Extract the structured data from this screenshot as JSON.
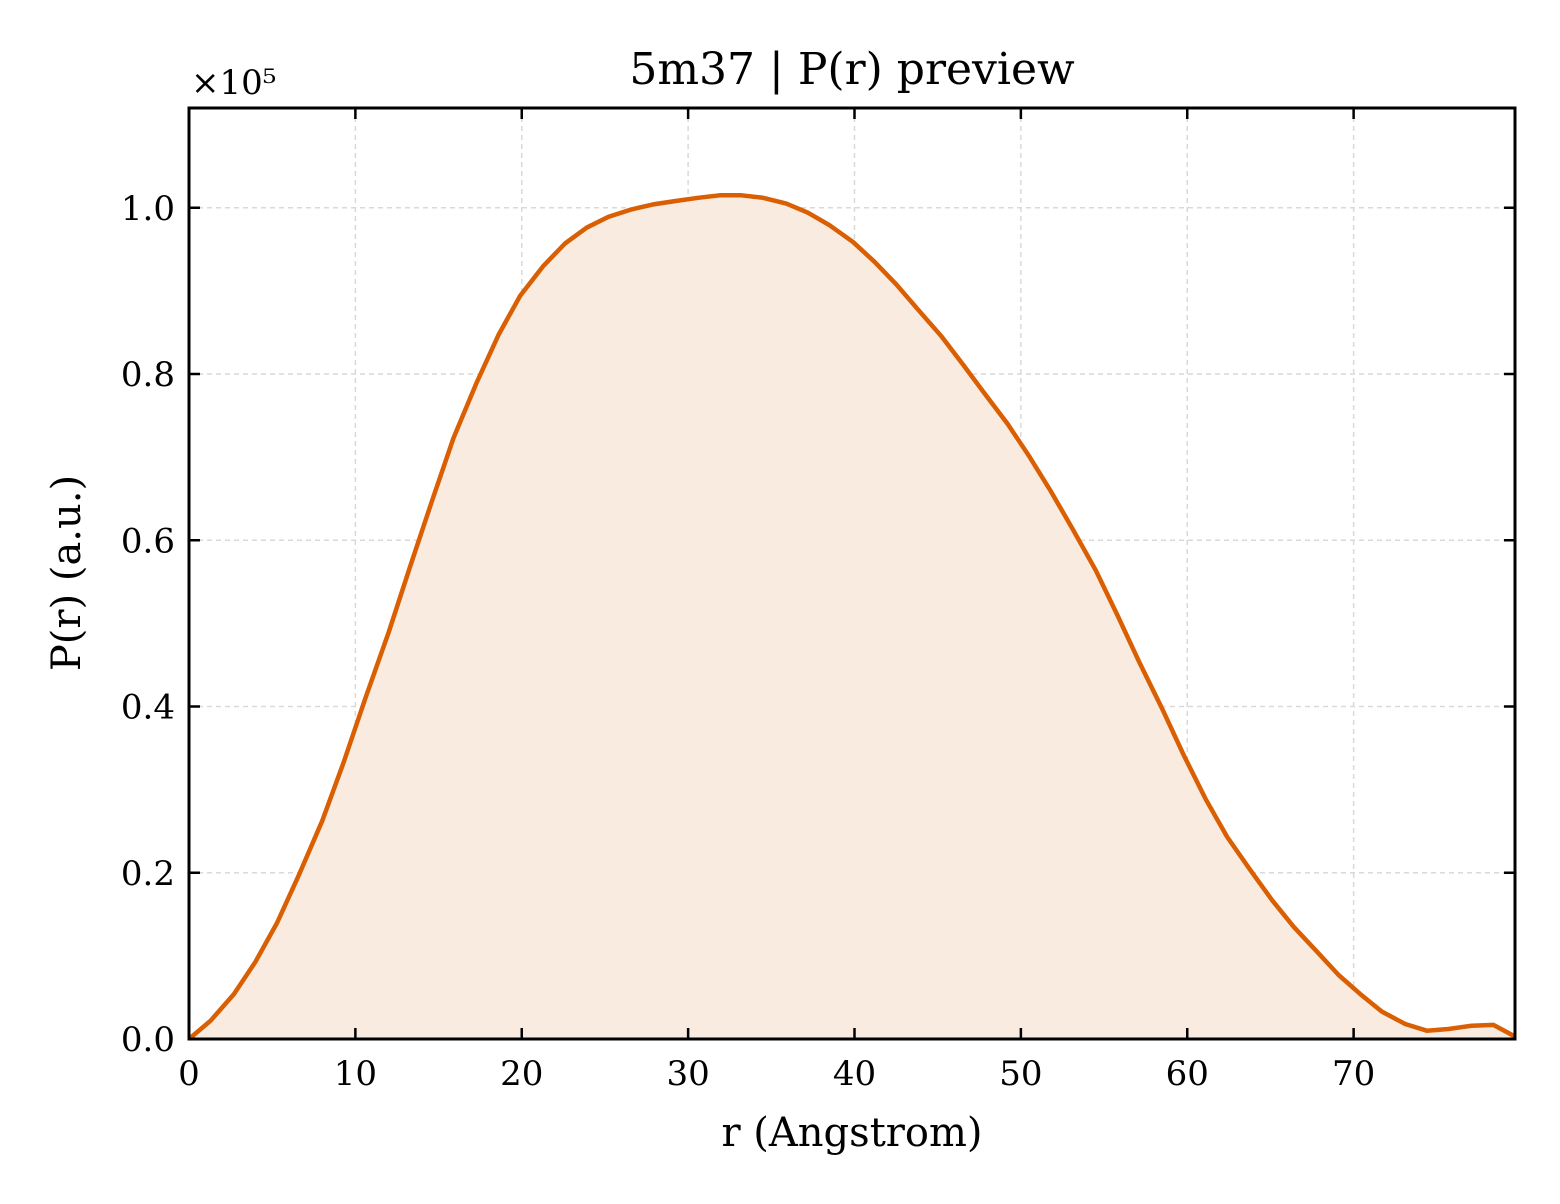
{
  "chart_data": {
    "type": "area",
    "title": "5m37 | P(r) preview",
    "xlabel": "r (Angstrom)",
    "ylabel": "P(r) (a.u.)",
    "y_scale_label": "×10⁵",
    "y_multiplier": 100000,
    "xlim": [
      0,
      79.7
    ],
    "ylim": [
      0,
      1.12
    ],
    "x_ticks": [
      0,
      10,
      20,
      30,
      40,
      50,
      60,
      70
    ],
    "x_tick_labels": [
      "0",
      "10",
      "20",
      "30",
      "40",
      "50",
      "60",
      "70"
    ],
    "y_ticks": [
      0.0,
      0.2,
      0.4,
      0.6,
      0.8,
      1.0
    ],
    "y_tick_labels": [
      "0.0",
      "0.2",
      "0.4",
      "0.6",
      "0.8",
      "1.0"
    ],
    "grid": true,
    "legend": "none",
    "line_color": "#D95F02",
    "fill_color": "#F9EBE0",
    "series": [
      {
        "x": [
          0.0,
          1.3,
          2.7,
          4.0,
          5.3,
          6.6,
          8.0,
          9.3,
          10.6,
          12.0,
          13.3,
          14.6,
          15.9,
          17.3,
          18.6,
          19.9,
          21.3,
          22.6,
          23.9,
          25.2,
          26.6,
          27.9,
          29.2,
          30.6,
          31.9,
          33.2,
          34.5,
          35.9,
          37.2,
          38.5,
          39.9,
          41.2,
          42.5,
          43.8,
          45.2,
          46.5,
          47.8,
          49.2,
          50.5,
          51.8,
          53.1,
          54.5,
          55.8,
          57.1,
          58.5,
          59.8,
          61.1,
          62.4,
          63.8,
          65.1,
          66.4,
          67.8,
          69.1,
          70.4,
          71.7,
          73.1,
          74.4,
          75.7,
          77.1,
          78.4,
          79.7
        ],
        "y": [
          0.0,
          0.022,
          0.054,
          0.093,
          0.14,
          0.197,
          0.262,
          0.333,
          0.41,
          0.489,
          0.569,
          0.647,
          0.723,
          0.79,
          0.847,
          0.894,
          0.93,
          0.957,
          0.976,
          0.989,
          0.998,
          1.004,
          1.008,
          1.012,
          1.015,
          1.015,
          1.012,
          1.005,
          0.994,
          0.979,
          0.959,
          0.935,
          0.908,
          0.878,
          0.846,
          0.812,
          0.777,
          0.74,
          0.701,
          0.659,
          0.614,
          0.564,
          0.51,
          0.454,
          0.397,
          0.341,
          0.289,
          0.243,
          0.203,
          0.167,
          0.135,
          0.105,
          0.077,
          0.054,
          0.033,
          0.018,
          0.01,
          0.012,
          0.016,
          0.017,
          0.003
        ]
      }
    ]
  }
}
